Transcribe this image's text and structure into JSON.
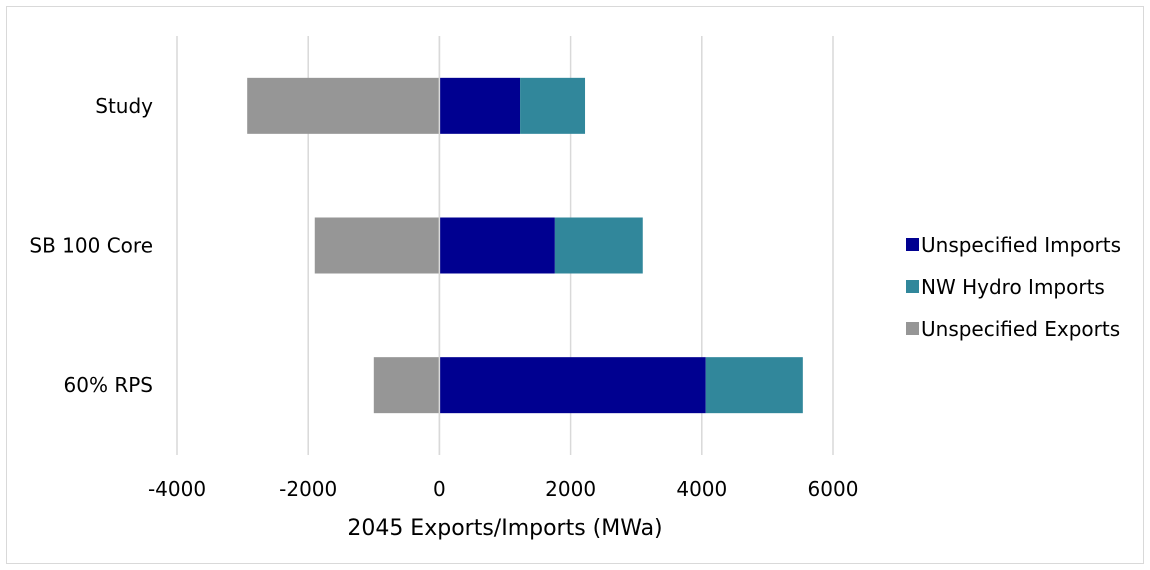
{
  "chart_data": {
    "type": "bar",
    "orientation": "horizontal",
    "stacked": true,
    "title": "",
    "xlabel": "2045 Exports/Imports (MWa)",
    "ylabel": "",
    "categories": [
      "Study",
      "SB 100 Core",
      "60% RPS"
    ],
    "x_ticks": [
      -4000,
      -2000,
      0,
      2000,
      4000,
      6000
    ],
    "xlim": [
      -4000,
      6000
    ],
    "grid": "vertical",
    "legend": "right",
    "series": [
      {
        "name": "Unspecified Imports",
        "color": "#000090",
        "values": [
          1230,
          1760,
          4060
        ]
      },
      {
        "name": "NW Hydro Imports",
        "color": "#31879b",
        "values": [
          990,
          1340,
          1480
        ]
      },
      {
        "name": "Unspecified Exports",
        "color": "#969696",
        "values": [
          -2930,
          -1900,
          -1000
        ]
      }
    ]
  }
}
